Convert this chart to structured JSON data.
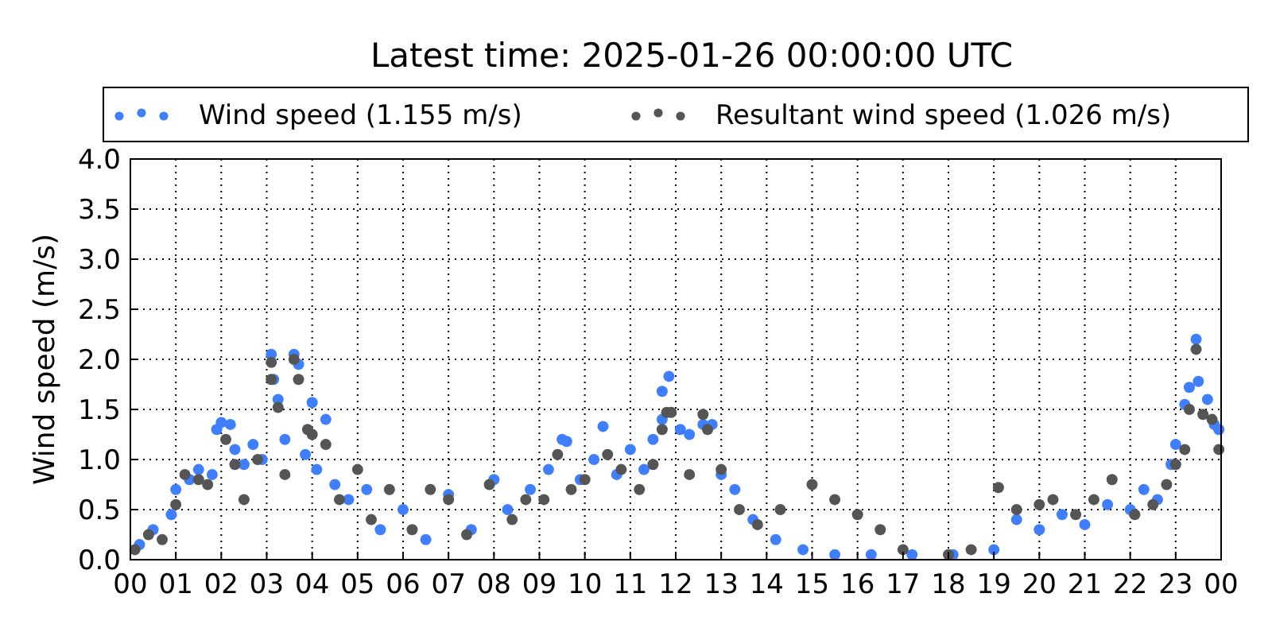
{
  "chart_data": {
    "type": "scatter",
    "title": "Latest time: 2025-01-26 00:00:00 UTC",
    "ylabel": "Wind speed (m/s)",
    "xlim": [
      0,
      24
    ],
    "xticks": [
      {
        "value": 0,
        "label": "00"
      },
      {
        "value": 1,
        "label": "01"
      },
      {
        "value": 2,
        "label": "02"
      },
      {
        "value": 3,
        "label": "03"
      },
      {
        "value": 4,
        "label": "04"
      },
      {
        "value": 5,
        "label": "05"
      },
      {
        "value": 6,
        "label": "06"
      },
      {
        "value": 7,
        "label": "07"
      },
      {
        "value": 8,
        "label": "08"
      },
      {
        "value": 9,
        "label": "09"
      },
      {
        "value": 10,
        "label": "10"
      },
      {
        "value": 11,
        "label": "11"
      },
      {
        "value": 12,
        "label": "12"
      },
      {
        "value": 13,
        "label": "13"
      },
      {
        "value": 14,
        "label": "14"
      },
      {
        "value": 15,
        "label": "15"
      },
      {
        "value": 16,
        "label": "16"
      },
      {
        "value": 17,
        "label": "17"
      },
      {
        "value": 18,
        "label": "18"
      },
      {
        "value": 19,
        "label": "19"
      },
      {
        "value": 20,
        "label": "20"
      },
      {
        "value": 21,
        "label": "21"
      },
      {
        "value": 22,
        "label": "22"
      },
      {
        "value": 23,
        "label": "23"
      },
      {
        "value": 24,
        "label": "00"
      }
    ],
    "ylim": [
      0,
      4
    ],
    "yticks": [
      {
        "value": 0,
        "label": "0.0"
      },
      {
        "value": 0.5,
        "label": "0.5"
      },
      {
        "value": 1,
        "label": "1.0"
      },
      {
        "value": 1.5,
        "label": "1.5"
      },
      {
        "value": 2,
        "label": "2.0"
      },
      {
        "value": 2.5,
        "label": "2.5"
      },
      {
        "value": 3,
        "label": "3.0"
      },
      {
        "value": 3.5,
        "label": "3.5"
      },
      {
        "value": 4,
        "label": "4.0"
      }
    ],
    "grid": true,
    "legend": "top",
    "marker": "circle",
    "series": [
      {
        "name": "Wind speed (1.155 m/s)",
        "color": "#3f7fff",
        "x": [
          0.2,
          0.5,
          0.9,
          1.0,
          1.3,
          1.5,
          1.8,
          1.9,
          2.0,
          2.2,
          2.3,
          2.5,
          2.7,
          2.9,
          3.1,
          3.15,
          3.25,
          3.4,
          3.6,
          3.7,
          3.85,
          4.0,
          4.1,
          4.3,
          4.5,
          4.8,
          5.2,
          5.5,
          6.0,
          6.5,
          7.0,
          7.5,
          8.0,
          8.3,
          8.8,
          9.2,
          9.5,
          9.6,
          9.9,
          10.2,
          10.4,
          10.7,
          11.0,
          11.3,
          11.5,
          11.7,
          11.7,
          11.85,
          12.1,
          12.3,
          12.6,
          12.8,
          13.0,
          13.3,
          13.7,
          14.2,
          14.8,
          15.5,
          16.3,
          17.2,
          18.1,
          19.0,
          19.5,
          20.0,
          20.5,
          21.0,
          21.5,
          22.0,
          22.3,
          22.6,
          22.9,
          23.0,
          23.2,
          23.3,
          23.45,
          23.5,
          23.7,
          23.85,
          23.95
        ],
        "values": [
          0.15,
          0.3,
          0.45,
          0.7,
          0.8,
          0.9,
          0.85,
          1.3,
          1.37,
          1.35,
          1.1,
          0.95,
          1.15,
          1.0,
          2.05,
          1.8,
          1.6,
          1.2,
          2.05,
          1.95,
          1.05,
          1.57,
          0.9,
          1.4,
          0.75,
          0.6,
          0.7,
          0.3,
          0.5,
          0.2,
          0.65,
          0.3,
          0.8,
          0.5,
          0.7,
          0.9,
          1.2,
          1.18,
          0.8,
          1.0,
          1.33,
          0.85,
          1.1,
          0.9,
          1.2,
          1.68,
          1.4,
          1.83,
          1.3,
          1.25,
          1.35,
          1.35,
          0.85,
          0.7,
          0.4,
          0.2,
          0.1,
          0.05,
          0.05,
          0.05,
          0.05,
          0.1,
          0.4,
          0.3,
          0.45,
          0.35,
          0.55,
          0.5,
          0.7,
          0.6,
          0.95,
          1.15,
          1.55,
          1.72,
          2.2,
          1.78,
          1.6,
          1.35,
          1.3
        ]
      },
      {
        "name": "Resultant wind speed (1.026 m/s)",
        "color": "#555555",
        "x": [
          0.1,
          0.4,
          0.7,
          1.0,
          1.2,
          1.5,
          1.7,
          2.1,
          2.3,
          2.5,
          2.8,
          3.1,
          3.1,
          3.25,
          3.4,
          3.6,
          3.7,
          3.9,
          4.0,
          4.3,
          4.6,
          5.0,
          5.3,
          5.7,
          6.2,
          6.6,
          7.0,
          7.4,
          7.9,
          8.4,
          8.7,
          9.1,
          9.4,
          9.7,
          10.0,
          10.5,
          10.8,
          11.2,
          11.5,
          11.7,
          11.8,
          11.9,
          12.3,
          12.6,
          12.7,
          13.0,
          13.4,
          13.8,
          14.3,
          15.0,
          15.5,
          16.0,
          16.5,
          17.0,
          18.0,
          18.5,
          19.1,
          19.5,
          20.0,
          20.3,
          20.8,
          21.2,
          21.6,
          22.1,
          22.5,
          22.8,
          23.0,
          23.2,
          23.3,
          23.45,
          23.6,
          23.8,
          23.95
        ],
        "values": [
          0.1,
          0.25,
          0.2,
          0.55,
          0.85,
          0.8,
          0.75,
          1.2,
          0.95,
          0.6,
          1.0,
          1.97,
          1.8,
          1.52,
          0.85,
          2.0,
          1.8,
          1.3,
          1.25,
          1.15,
          0.6,
          0.9,
          0.4,
          0.7,
          0.3,
          0.7,
          0.6,
          0.25,
          0.75,
          0.4,
          0.6,
          0.6,
          1.05,
          0.7,
          0.8,
          1.05,
          0.9,
          0.7,
          0.95,
          1.3,
          1.47,
          1.47,
          0.85,
          1.45,
          1.3,
          0.9,
          0.5,
          0.35,
          0.5,
          0.75,
          0.6,
          0.45,
          0.3,
          0.1,
          0.05,
          0.1,
          0.72,
          0.5,
          0.55,
          0.6,
          0.45,
          0.6,
          0.8,
          0.45,
          0.55,
          0.75,
          0.95,
          1.1,
          1.5,
          2.1,
          1.45,
          1.4,
          1.1
        ]
      }
    ]
  }
}
